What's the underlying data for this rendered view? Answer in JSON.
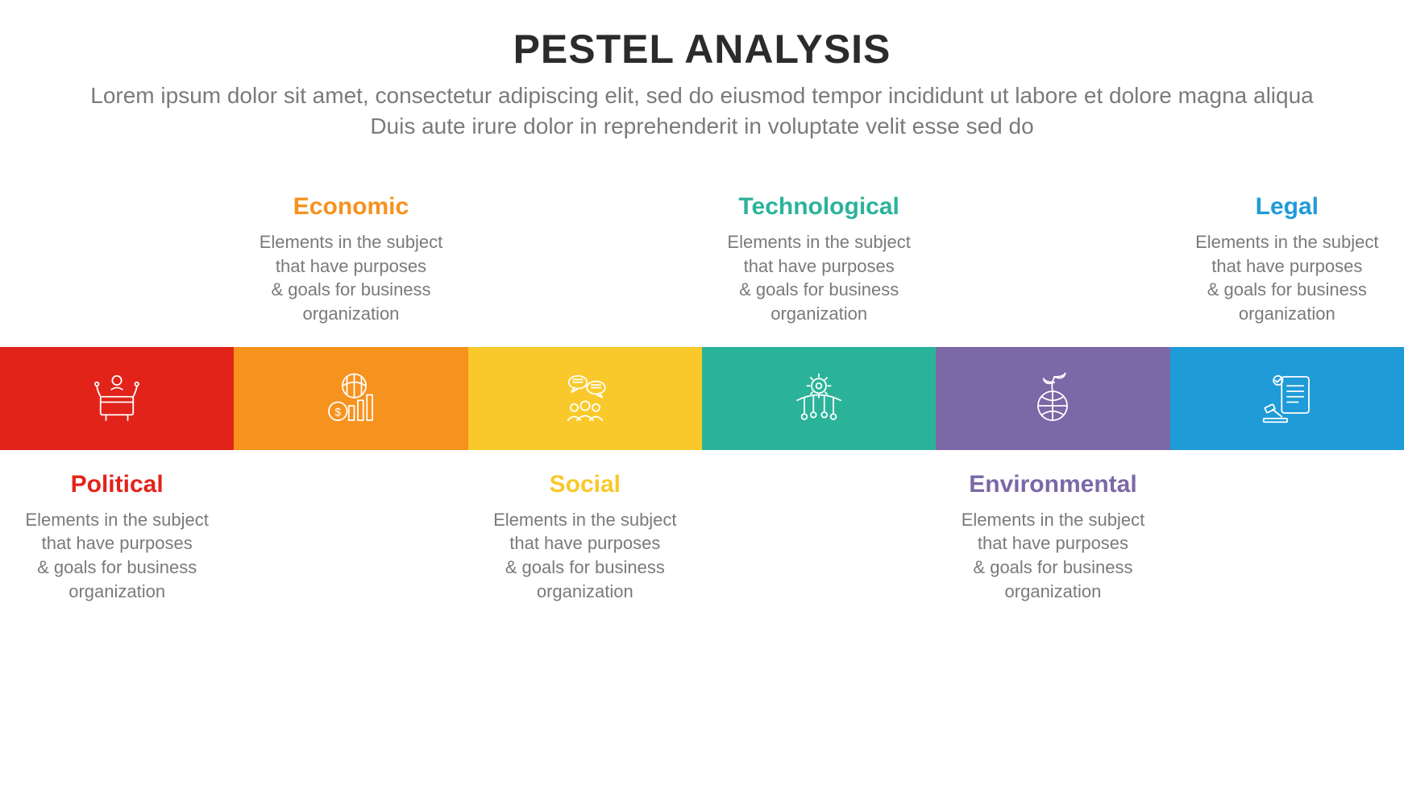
{
  "header": {
    "title": "PESTEL ANALYSIS",
    "subtitle": "Lorem ipsum dolor sit amet, consectetur adipiscing elit, sed do eiusmod tempor incididunt ut labore et dolore magna aliqua Duis aute irure dolor in reprehenderit in voluptate velit esse sed do"
  },
  "common_description": "Elements in the subject\nthat have purposes\n& goals for business\norganization",
  "items": [
    {
      "key": "political",
      "label": "Political",
      "color": "#e2231a",
      "position": "bottom",
      "icon": "podium-icon"
    },
    {
      "key": "economic",
      "label": "Economic",
      "color": "#f6921e",
      "position": "top",
      "icon": "economy-icon"
    },
    {
      "key": "social",
      "label": "Social",
      "color": "#f9c92b",
      "position": "bottom",
      "icon": "people-chat-icon"
    },
    {
      "key": "technological",
      "label": "Technological",
      "color": "#2bb39a",
      "position": "top",
      "icon": "gear-network-icon"
    },
    {
      "key": "environmental",
      "label": "Environmental",
      "color": "#7b68a6",
      "position": "bottom",
      "icon": "globe-leaf-icon"
    },
    {
      "key": "legal",
      "label": "Legal",
      "color": "#1f9bd7",
      "position": "top",
      "icon": "gavel-doc-icon"
    }
  ],
  "style": {
    "title_fontsize": 50,
    "subtitle_fontsize": 28,
    "label_title_fontsize": 30,
    "label_desc_fontsize": 22,
    "icon_strip_height": 128,
    "background": "#ffffff",
    "text_muted": "#7a7a7a",
    "text_dark": "#2b2b2b"
  }
}
